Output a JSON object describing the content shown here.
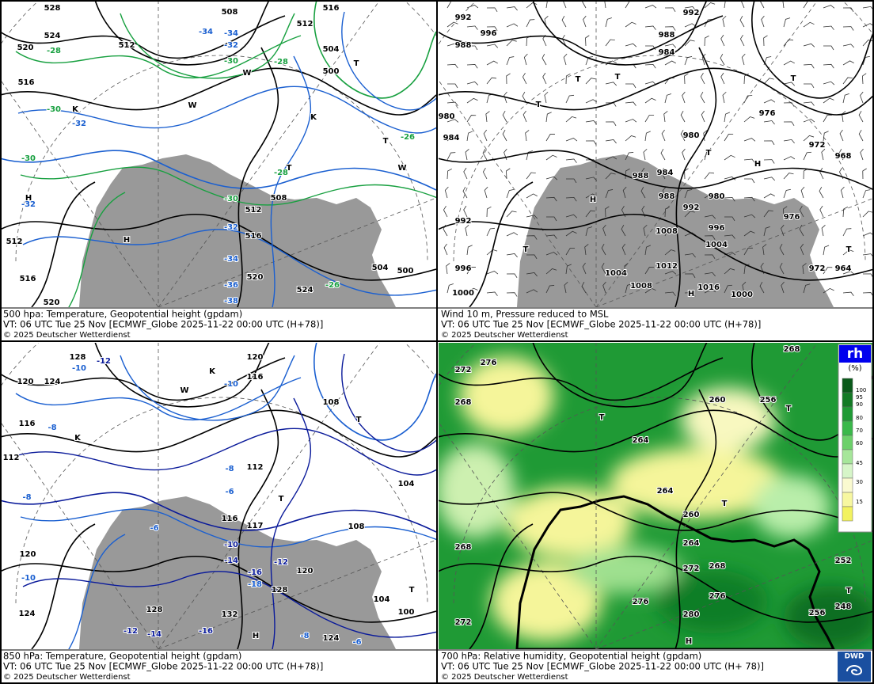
{
  "panels": [
    {
      "caption": [
        "500 hpa: Temperature, Geopotential height (gpdam)",
        "VT: 06 UTC Tue  25 Nov [ECMWF_Globe 2025-11-22 00:00 UTC  (H+78)]",
        "© 2025 Deutscher Wetterdienst"
      ],
      "labels": [
        "528",
        "524",
        "520",
        "516",
        "512",
        "508",
        "512",
        "516",
        "504",
        "500",
        "-34",
        "-34",
        "-32",
        "-30",
        "-28",
        "-28",
        "-30",
        "-32",
        "-30",
        "-32",
        "-26",
        "-28",
        "-30",
        "-32",
        "-34",
        "-36",
        "-38",
        "508",
        "512",
        "516",
        "520",
        "524",
        "504",
        "500",
        "520",
        "516",
        "512",
        "-26",
        "T",
        "T",
        "T",
        "H",
        "H",
        "K",
        "K",
        "W",
        "W",
        "W"
      ]
    },
    {
      "caption": [
        "Wind 10 m, Pressure reduced to MSL",
        "VT: 06 UTC Tue  25 Nov [ECMWF_Globe 2025-11-22 00:00 UTC (H+78)]",
        "© 2025 Deutscher Wetterdienst"
      ],
      "labels": [
        "992",
        "996",
        "988",
        "992",
        "988",
        "984",
        "980",
        "984",
        "980",
        "976",
        "972",
        "968",
        "988",
        "984",
        "988",
        "980",
        "992",
        "976",
        "996",
        "1008",
        "1004",
        "992",
        "996",
        "1000",
        "1004",
        "1012",
        "1008",
        "1016",
        "1000",
        "972",
        "964",
        "T",
        "T",
        "T",
        "T",
        "T",
        "H",
        "H",
        "H",
        "T",
        "T"
      ]
    },
    {
      "caption": [
        "850 hPa:  Temperature, Geopotential height (gpdam)",
        "VT: 06 UTC Tue  25 Nov [ECMWF_Globe 2025-11-22 00:00 UTC  (H+78)]",
        "© 2025 Deutscher Wetterdienst"
      ],
      "labels": [
        "128",
        "-10",
        "-12",
        "120",
        "-10",
        "116",
        "120",
        "124",
        "116",
        "-8",
        "112",
        "-8",
        "108",
        "-8",
        "-6",
        "112",
        "104",
        "116",
        "117",
        "108",
        "-6",
        "120",
        "-10",
        "-10",
        "-14",
        "-16",
        "-12",
        "-18",
        "120",
        "128",
        "104",
        "100",
        "124",
        "128",
        "132",
        "-12",
        "-14",
        "-16",
        "-8",
        "124",
        "-6",
        "T",
        "T",
        "T",
        "H",
        "K",
        "W",
        "K"
      ]
    },
    {
      "caption": [
        "700 hPa:  Relative humidity, Geopotential height (gpdam)",
        "VT: 06 UTC Tue  25 Nov [ECMWF_Globe  2025-11-22 00:00 UTC  (H+ 78)]",
        "© 2025 Deutscher Wetterdienst"
      ],
      "labels": [
        "268",
        "276",
        "272",
        "268",
        "260",
        "256",
        "264",
        "264",
        "260",
        "264",
        "272",
        "268",
        "276",
        "276",
        "280",
        "268",
        "272",
        "256",
        "248",
        "252",
        "T",
        "T",
        "T",
        "T",
        "H"
      ]
    }
  ],
  "legend": {
    "title": "rh",
    "unit": "(%)",
    "ticks": [
      100,
      95,
      90,
      80,
      70,
      60,
      45,
      30,
      15
    ]
  },
  "logo": "DWD"
}
